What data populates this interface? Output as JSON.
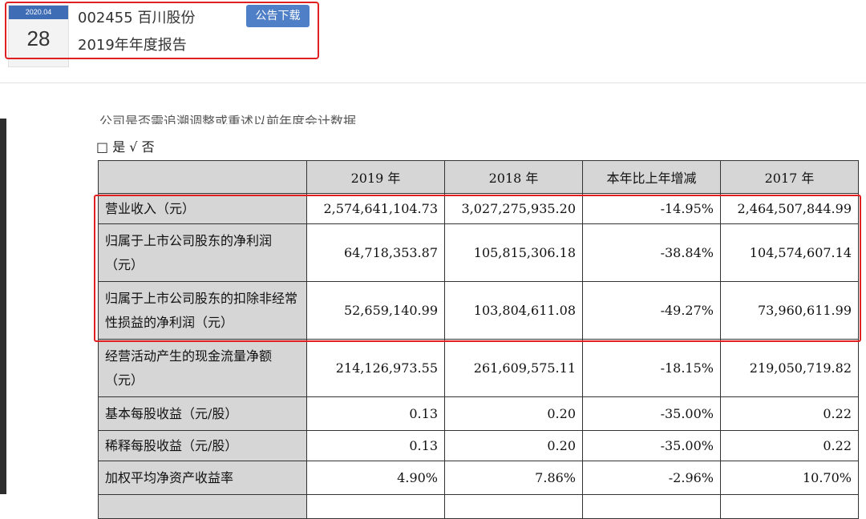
{
  "header": {
    "date_month": "2020.04",
    "date_day": "28",
    "stock_code": "002455",
    "company_name": "百川股份",
    "report_title": "2019年年度报告",
    "download_label": "公告下载"
  },
  "document": {
    "cut_text": "公司是否需追溯调整或重述以前年度会计数据",
    "restate_options": "□ 是 √ 否",
    "table": {
      "headers": [
        "",
        "2019 年",
        "2018 年",
        "本年比上年增减",
        "2017 年"
      ],
      "rows": [
        {
          "label": "营业收入（元）",
          "v2019": "2,574,641,104.73",
          "v2018": "3,027,275,935.20",
          "change": "-14.95%",
          "v2017": "2,464,507,844.99"
        },
        {
          "label": "归属于上市公司股东的净利润（元）",
          "v2019": "64,718,353.87",
          "v2018": "105,815,306.18",
          "change": "-38.84%",
          "v2017": "104,574,607.14"
        },
        {
          "label": "归属于上市公司股东的扣除非经常性损益的净利润（元）",
          "v2019": "52,659,140.99",
          "v2018": "103,804,611.08",
          "change": "-49.27%",
          "v2017": "73,960,611.99"
        },
        {
          "label": "经营活动产生的现金流量净额（元）",
          "v2019": "214,126,973.55",
          "v2018": "261,609,575.11",
          "change": "-18.15%",
          "v2017": "219,050,719.82"
        },
        {
          "label": "基本每股收益（元/股）",
          "v2019": "0.13",
          "v2018": "0.20",
          "change": "-35.00%",
          "v2017": "0.22"
        },
        {
          "label": "稀释每股收益（元/股）",
          "v2019": "0.13",
          "v2018": "0.20",
          "change": "-35.00%",
          "v2017": "0.22"
        },
        {
          "label": "加权平均净资产收益率",
          "v2019": "4.90%",
          "v2018": "7.86%",
          "change": "-2.96%",
          "v2017": "10.70%"
        }
      ]
    }
  },
  "colors": {
    "accent_blue": "#4f7fc7",
    "highlight_red": "#e02020",
    "label_gray": "#d6d6d6"
  }
}
